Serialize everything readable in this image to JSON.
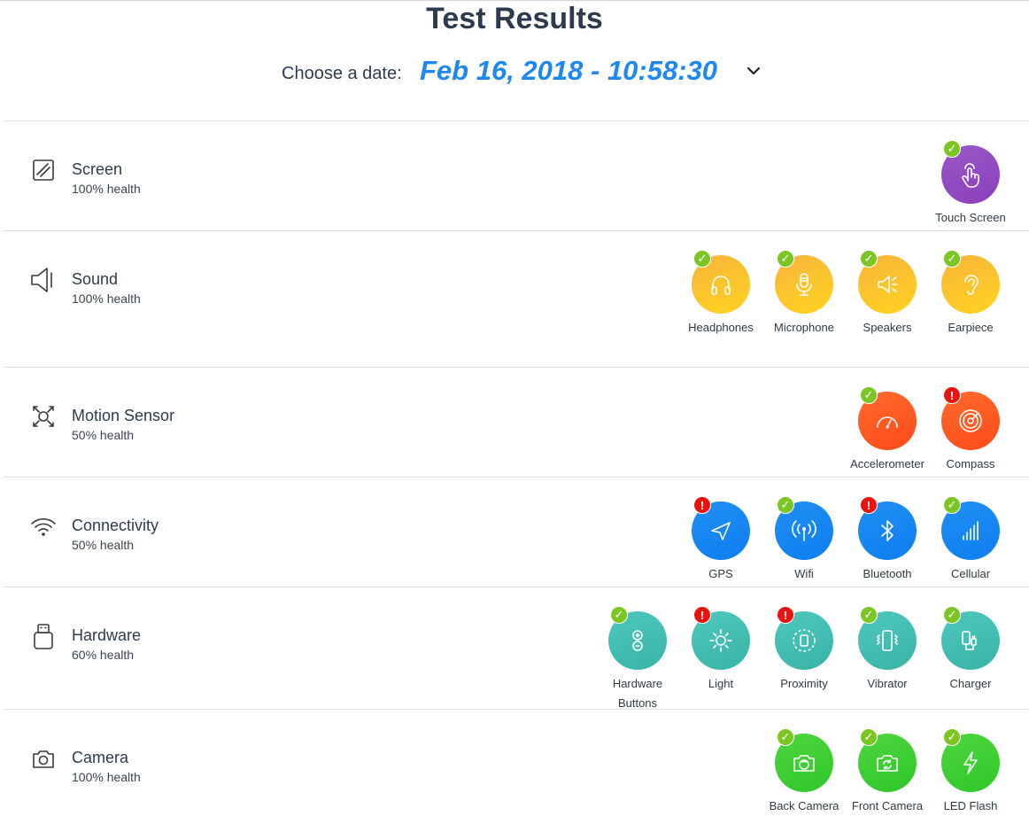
{
  "header": {
    "title": "Test Results",
    "date_label": "Choose a date:",
    "date_value": "Feb 16, 2018 - 10:58:30"
  },
  "status_icons": {
    "pass": "checkmark-icon",
    "fail": "exclamation-icon"
  },
  "colors": {
    "purple": "#8e44bd",
    "yellow": "#fbbf2f",
    "orange": "#ff5722",
    "blue": "#1e88f0",
    "teal": "#45bcb1",
    "green": "#3ecf33",
    "pass": "#7cc623",
    "fail": "#e8140d"
  },
  "categories": [
    {
      "name": "Screen",
      "health": "100% health",
      "icon": "screen-icon",
      "tests": [
        {
          "label": "Touch Screen",
          "status": "pass",
          "icon": "touch-icon"
        }
      ]
    },
    {
      "name": "Sound",
      "health": "100% health",
      "icon": "speaker-icon",
      "tests": [
        {
          "label": "Headphones",
          "status": "pass",
          "icon": "headphones-icon"
        },
        {
          "label": "Microphone",
          "status": "pass",
          "icon": "microphone-icon"
        },
        {
          "label": "Speakers",
          "status": "pass",
          "icon": "speakers-icon"
        },
        {
          "label": "Earpiece",
          "status": "pass",
          "icon": "ear-icon"
        }
      ]
    },
    {
      "name": "Motion Sensor",
      "health": "50% health",
      "icon": "motion-icon",
      "tests": [
        {
          "label": "Accelerometer",
          "status": "pass",
          "icon": "gauge-icon"
        },
        {
          "label": "Compass",
          "status": "fail",
          "icon": "compass-icon"
        }
      ]
    },
    {
      "name": "Connectivity",
      "health": "50% health",
      "icon": "wifi-icon",
      "tests": [
        {
          "label": "GPS",
          "status": "fail",
          "icon": "navigation-icon"
        },
        {
          "label": "Wifi",
          "status": "pass",
          "icon": "antenna-icon"
        },
        {
          "label": "Bluetooth",
          "status": "fail",
          "icon": "bluetooth-icon"
        },
        {
          "label": "Cellular",
          "status": "pass",
          "icon": "signal-bars-icon"
        }
      ]
    },
    {
      "name": "Hardware",
      "health": "60% health",
      "icon": "hardware-icon",
      "tests": [
        {
          "label": "Hardware Buttons",
          "status": "pass",
          "icon": "plus-minus-icon"
        },
        {
          "label": "Light",
          "status": "fail",
          "icon": "sun-icon"
        },
        {
          "label": "Proximity",
          "status": "fail",
          "icon": "proximity-icon"
        },
        {
          "label": "Vibrator",
          "status": "pass",
          "icon": "vibrate-icon"
        },
        {
          "label": "Charger",
          "status": "pass",
          "icon": "charger-icon"
        }
      ]
    },
    {
      "name": "Camera",
      "health": "100% health",
      "icon": "camera-icon",
      "tests": [
        {
          "label": "Back Camera",
          "status": "pass",
          "icon": "back-camera-icon"
        },
        {
          "label": "Front Camera",
          "status": "pass",
          "icon": "front-camera-icon"
        },
        {
          "label": "LED Flash",
          "status": "pass",
          "icon": "flash-icon"
        }
      ]
    }
  ]
}
